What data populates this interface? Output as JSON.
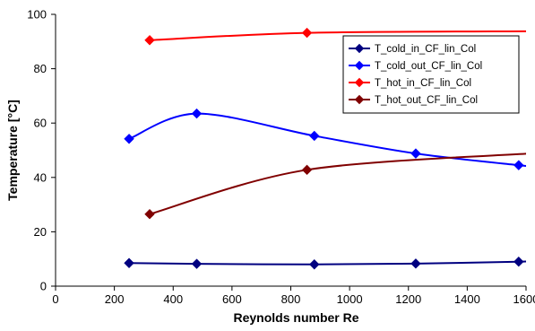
{
  "chart_data": {
    "type": "line",
    "xlabel": "Reynolds number Re",
    "ylabel": "Temperature [°C]",
    "xlim": [
      0,
      1600
    ],
    "ylim": [
      0,
      100
    ],
    "xticks": [
      0,
      200,
      400,
      600,
      800,
      1000,
      1200,
      1400,
      1600
    ],
    "yticks": [
      0,
      20,
      40,
      60,
      80,
      100
    ],
    "grid": false,
    "legend_position": "top-right",
    "series": [
      {
        "name": "T_cold_in_CF_lin_Col",
        "color": "#000080",
        "marker": "diamond",
        "x": [
          250,
          480,
          880,
          1225,
          1575,
          1640
        ],
        "y": [
          8.5,
          8.2,
          8.0,
          8.3,
          9.0,
          9.2
        ]
      },
      {
        "name": "T_cold_out_CF_lin_Col",
        "color": "#0000FF",
        "marker": "diamond",
        "x": [
          250,
          480,
          880,
          1225,
          1575,
          1640
        ],
        "y": [
          54.2,
          63.5,
          55.3,
          48.8,
          44.5,
          44.0
        ]
      },
      {
        "name": "T_hot_in_CF_lin_Col",
        "color": "#FF0000",
        "marker": "diamond",
        "x": [
          320,
          855,
          1640
        ],
        "y": [
          90.5,
          93.2,
          93.8
        ]
      },
      {
        "name": "T_hot_out_CF_lin_Col",
        "color": "#800000",
        "marker": "diamond",
        "x": [
          320,
          855,
          1640
        ],
        "y": [
          26.5,
          42.8,
          49.0
        ]
      }
    ]
  }
}
